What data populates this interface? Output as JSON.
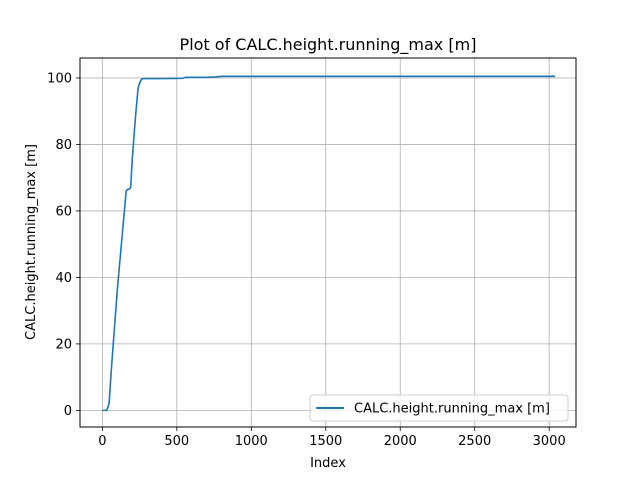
{
  "chart_data": {
    "type": "line",
    "title": "Plot of CALC.height.running_max [m]",
    "xlabel": "Index",
    "ylabel": "CALC.height.running_max [m]",
    "xlim": [
      -150,
      3180
    ],
    "ylim": [
      -5,
      106
    ],
    "xticks": [
      0,
      500,
      1000,
      1500,
      2000,
      2500,
      3000
    ],
    "yticks": [
      0,
      20,
      40,
      60,
      80,
      100
    ],
    "grid": true,
    "legend_position": "lower-right",
    "series": [
      {
        "name": "CALC.height.running_max [m]",
        "color": "#1f77b4",
        "x": [
          0,
          30,
          45,
          60,
          80,
          100,
          120,
          140,
          160,
          170,
          180,
          190,
          200,
          220,
          240,
          255,
          265,
          280,
          300,
          400,
          540,
          560,
          600,
          700,
          760,
          800,
          1000,
          2000,
          3040
        ],
        "y": [
          0,
          0,
          2,
          12,
          24,
          36,
          46,
          56,
          66,
          66.5,
          66.5,
          67,
          75,
          87,
          97,
          99,
          99.7,
          99.8,
          99.8,
          99.8,
          99.9,
          100.2,
          100.2,
          100.2,
          100.3,
          100.5,
          100.5,
          100.5,
          100.5
        ]
      }
    ]
  }
}
